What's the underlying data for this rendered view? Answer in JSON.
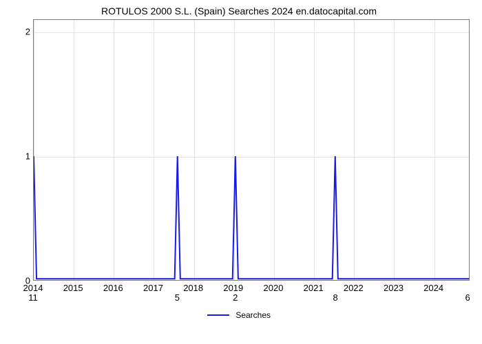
{
  "chart": {
    "type": "line",
    "title": "ROTULOS 2000 S.L. (Spain) Searches 2024 en.datocapital.com",
    "title_fontsize": 14,
    "title_color": "#000000",
    "background_color": "#ffffff",
    "plot_border_color": "#7a7a7a",
    "grid_color": "#e5e5e5",
    "grid_minor_h_count": 7,
    "x_ticks": [
      "2014",
      "2015",
      "2016",
      "2017",
      "2018",
      "2019",
      "2020",
      "2021",
      "2022",
      "2023",
      "2024"
    ],
    "y_ticks": [
      0,
      1,
      2
    ],
    "x_range": [
      2014,
      2024.9
    ],
    "y_range": [
      0,
      2.1
    ],
    "series": {
      "label": "Searches",
      "color": "#1a1ae6",
      "width": 2,
      "baseline": 0.01,
      "peaks": [
        {
          "x": 2014.0,
          "y": 1.0
        },
        {
          "x": 2017.6,
          "y": 1.0
        },
        {
          "x": 2019.05,
          "y": 1.0
        },
        {
          "x": 2021.55,
          "y": 1.0
        }
      ],
      "peak_half_width": 0.07
    },
    "bottom_values": [
      {
        "x": 2014.0,
        "label": "11"
      },
      {
        "x": 2017.6,
        "label": "5"
      },
      {
        "x": 2019.05,
        "label": "2"
      },
      {
        "x": 2021.55,
        "label": "8"
      },
      {
        "x": 2024.85,
        "label": "6"
      }
    ],
    "legend": {
      "label": "Searches",
      "color": "#1a1ae6"
    }
  }
}
